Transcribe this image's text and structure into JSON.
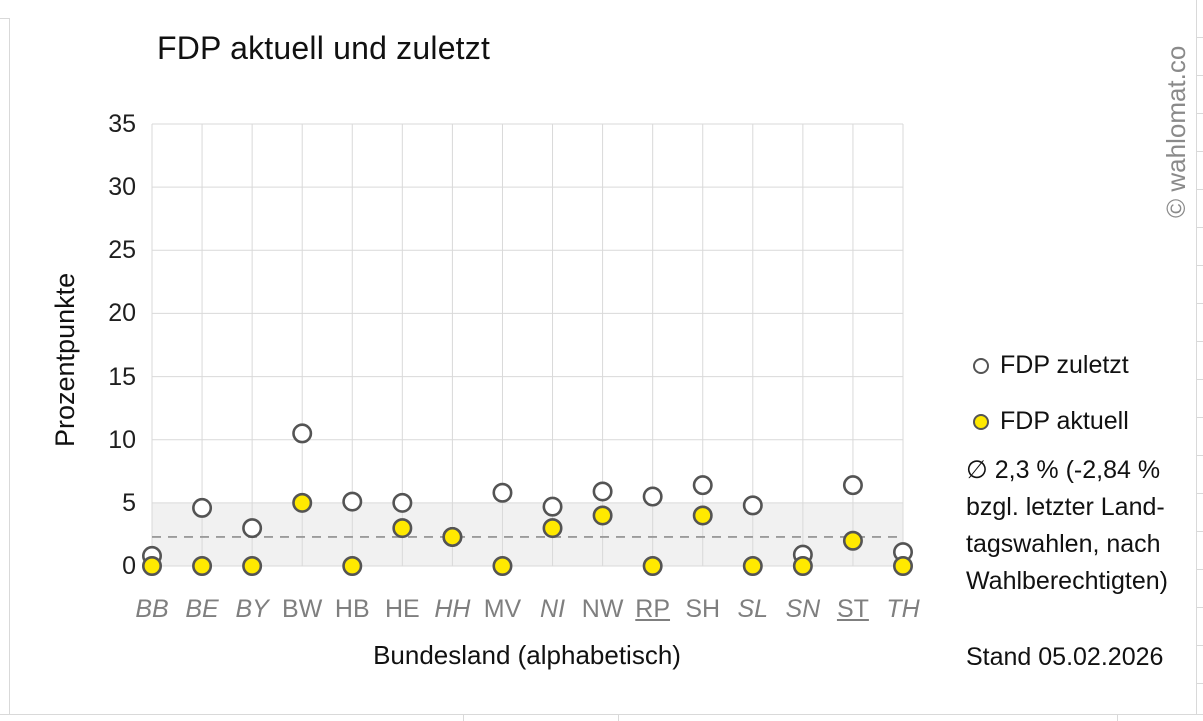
{
  "title": "FDP aktuell und zuletzt",
  "watermark": "© wahlomat.co",
  "legend": [
    {
      "label": "FDP zuletzt",
      "marker": "open-circle",
      "fill": "#FFFFFF"
    },
    {
      "label": "FDP aktuell",
      "marker": "filled-circle",
      "fill": "#FFE900"
    }
  ],
  "annotation": {
    "lines": [
      "∅ 2,3 % (-2,84 %",
      "bzgl. letzter Land-",
      "tagswahlen, nach",
      "Wahlberechtigten)"
    ]
  },
  "stand": "Stand 05.02.2026",
  "colors": {
    "gridline": "#d9d9d9",
    "band": "#f1f1f1",
    "average_line": "#9b9b9b",
    "marker_outline": "#545454",
    "accent_yellow": "#FFE900",
    "axis_text": "#1f1f1f",
    "category_text": "#7f7f7f"
  },
  "chart_data": {
    "type": "scatter",
    "title": "FDP aktuell und zuletzt",
    "xlabel": "Bundesland (alphabetisch)",
    "ylabel": "Prozentpunkte",
    "ylim": [
      0,
      35
    ],
    "ytick_step": 5,
    "grid": true,
    "legend_position": "right",
    "categories": [
      "BB",
      "BE",
      "BY",
      "BW",
      "HB",
      "HE",
      "HH",
      "MV",
      "NI",
      "NW",
      "RP",
      "SH",
      "SL",
      "SN",
      "ST",
      "TH"
    ],
    "category_styles": {
      "italic": [
        "BB",
        "BE",
        "BY",
        "HH",
        "NI",
        "SL",
        "SN",
        "TH"
      ],
      "underline": [
        "RP",
        "ST"
      ]
    },
    "series": [
      {
        "name": "FDP zuletzt",
        "marker": "open-circle",
        "fill": "#FFFFFF",
        "values": [
          0.8,
          4.6,
          3.0,
          10.5,
          5.1,
          5.0,
          2.3,
          5.8,
          4.7,
          5.9,
          5.5,
          6.4,
          4.8,
          0.9,
          6.4,
          1.1
        ]
      },
      {
        "name": "FDP aktuell",
        "marker": "filled-circle",
        "fill": "#FFE900",
        "values": [
          0,
          0,
          0,
          5.0,
          0,
          3.0,
          2.3,
          0,
          3.0,
          4.0,
          0,
          4.0,
          0,
          0,
          2.0,
          0
        ]
      }
    ],
    "average_line_value": 2.3,
    "band": [
      0,
      5
    ]
  }
}
